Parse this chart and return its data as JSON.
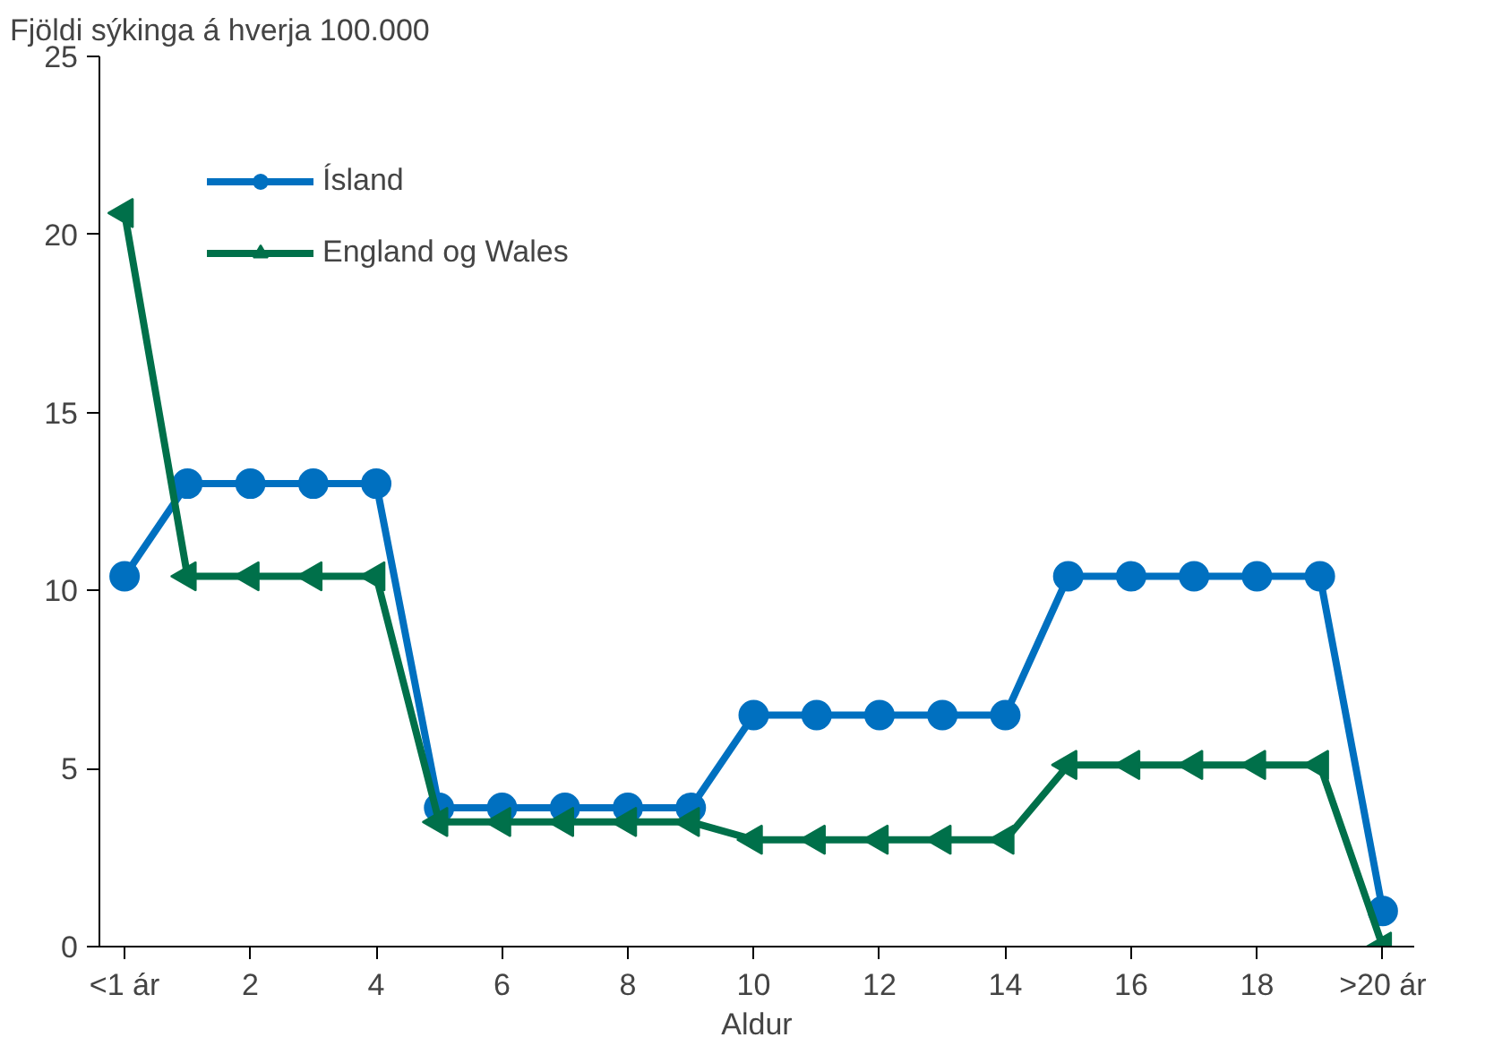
{
  "chart_data": {
    "type": "line",
    "ylabel": "Fjöldi sýkinga á hverja 100.000",
    "xlabel": "Aldur",
    "x": [
      0,
      1,
      2,
      3,
      4,
      5,
      6,
      7,
      8,
      9,
      10,
      11,
      12,
      13,
      14,
      15,
      16,
      17,
      18,
      19,
      20
    ],
    "xlim": [
      -0.4,
      20.5
    ],
    "ylim": [
      0,
      25
    ],
    "xticks": [
      {
        "value": 0,
        "label": "<1 ár"
      },
      2,
      4,
      6,
      8,
      10,
      12,
      14,
      16,
      18,
      {
        "value": 20,
        "label": ">20 ár"
      }
    ],
    "yticks": [
      0,
      5,
      10,
      15,
      20,
      25
    ],
    "grid": false,
    "legend": "top left",
    "line_style": "solid",
    "series": [
      {
        "name": "Ísland",
        "color": "#0070c0",
        "marker": "circle",
        "values": [
          10.4,
          13,
          13,
          13,
          13,
          3.9,
          3.9,
          3.9,
          3.9,
          3.9,
          6.5,
          6.5,
          6.5,
          6.5,
          6.5,
          10.4,
          10.4,
          10.4,
          10.4,
          10.4,
          1
        ]
      },
      {
        "name": "England og Wales",
        "color": "#00704a",
        "marker": "triangle",
        "values": [
          20.6,
          10.4,
          10.4,
          10.4,
          10.4,
          3.5,
          3.5,
          3.5,
          3.5,
          3.5,
          3,
          3,
          3,
          3,
          3,
          5.1,
          5.1,
          5.1,
          5.1,
          5.1,
          0
        ]
      }
    ]
  }
}
